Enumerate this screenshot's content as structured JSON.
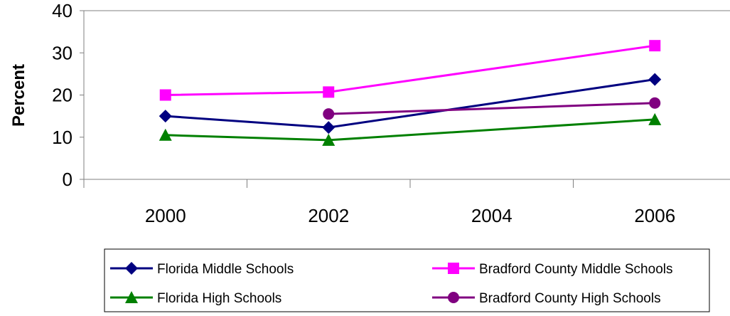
{
  "chart_data": {
    "type": "line",
    "ylabel": "Percent",
    "xlabel": "",
    "ylim": [
      0,
      40
    ],
    "yticks": [
      0,
      10,
      20,
      30,
      40
    ],
    "xlim": [
      1999,
      2007
    ],
    "xticks": [
      2000,
      2002,
      2004,
      2006
    ],
    "grid": false,
    "legend_position": "bottom",
    "series": [
      {
        "name": "Florida Middle Schools",
        "color": "#000080",
        "marker": "diamond",
        "points": [
          [
            2000,
            15
          ],
          [
            2002,
            12.3
          ],
          [
            2006,
            23.7
          ]
        ]
      },
      {
        "name": "Bradford County Middle Schools",
        "color": "#ff00ff",
        "marker": "square",
        "points": [
          [
            2000,
            20
          ],
          [
            2002,
            20.7
          ],
          [
            2006,
            31.7
          ]
        ]
      },
      {
        "name": "Florida High Schools",
        "color": "#008000",
        "marker": "triangle",
        "points": [
          [
            2000,
            10.5
          ],
          [
            2002,
            9.3
          ],
          [
            2006,
            14.2
          ]
        ]
      },
      {
        "name": "Bradford County High Schools",
        "color": "#800080",
        "marker": "circle",
        "points": [
          [
            2002,
            15.5
          ],
          [
            2006,
            18.1
          ]
        ]
      }
    ]
  }
}
